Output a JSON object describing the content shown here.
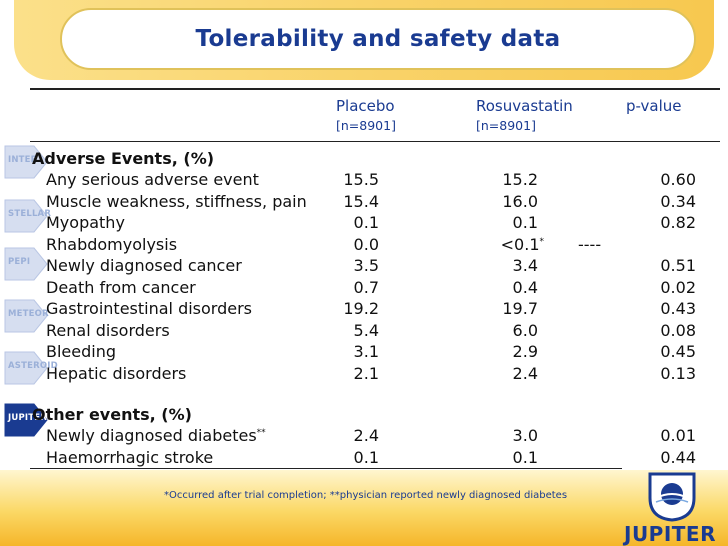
{
  "title": "Tolerability and safety data",
  "columns": {
    "placebo": "Placebo",
    "placebo_n": "[n=8901]",
    "rosuvastatin": "Rosuvastatin",
    "rosuvastatin_n": "[n=8901]",
    "pvalue": "p-value"
  },
  "sections": {
    "adverse_events": "Adverse Events, (%)",
    "other_events": "Other events, (%)"
  },
  "adverse_rows": [
    {
      "label": "Any serious adverse event",
      "placebo": "15.5",
      "rosu": "15.2",
      "p": "0.60"
    },
    {
      "label": "Muscle weakness, stiffness, pain",
      "placebo": "15.4",
      "rosu": "16.0",
      "p": "0.34"
    },
    {
      "label": "Myopathy",
      "placebo": "0.1",
      "rosu": "0.1",
      "p": "0.82"
    },
    {
      "label": "Rhabdomyolysis",
      "placebo": "0.0",
      "rosu": "<0.1",
      "rosu_mark": "*",
      "extra": "----",
      "p": ""
    },
    {
      "label": "Newly diagnosed cancer",
      "placebo": "3.5",
      "rosu": "3.4",
      "p": "0.51"
    },
    {
      "label": "Death from cancer",
      "placebo": "0.7",
      "rosu": "0.4",
      "p": "0.02"
    },
    {
      "label": "Gastrointestinal disorders",
      "placebo": "19.2",
      "rosu": "19.7",
      "p": "0.43"
    },
    {
      "label": "Renal disorders",
      "placebo": "5.4",
      "rosu": "6.0",
      "p": "0.08"
    },
    {
      "label": "Bleeding",
      "placebo": "3.1",
      "rosu": "2.9",
      "p": "0.45"
    },
    {
      "label": "Hepatic disorders",
      "placebo": "2.1",
      "rosu": "2.4",
      "p": "0.13"
    }
  ],
  "other_rows": [
    {
      "label": "Newly diagnosed diabetes",
      "label_mark": "**",
      "placebo": "2.4",
      "rosu": "3.0",
      "p": "0.01"
    },
    {
      "label": "Haemorrhagic stroke",
      "placebo": "0.1",
      "rosu": "0.1",
      "p": "0.44"
    }
  ],
  "side_tabs": [
    {
      "label": "INTER",
      "active": false
    },
    {
      "label": "STELLAR",
      "active": false
    },
    {
      "label": "PEPI",
      "active": false
    },
    {
      "label": "METEOR",
      "active": false
    },
    {
      "label": "ASTEROID",
      "active": false
    },
    {
      "label": "JUPITER",
      "active": true
    }
  ],
  "footnote": "*Occurred after trial completion; **physician reported newly diagnosed diabetes",
  "logo_text": "JUPITER",
  "colors": {
    "accent_blue": "#1a3b91",
    "banner_yellow": "#f9d36a",
    "active_tab": "#1a3b91",
    "inactive_tab": "#d6def0"
  }
}
